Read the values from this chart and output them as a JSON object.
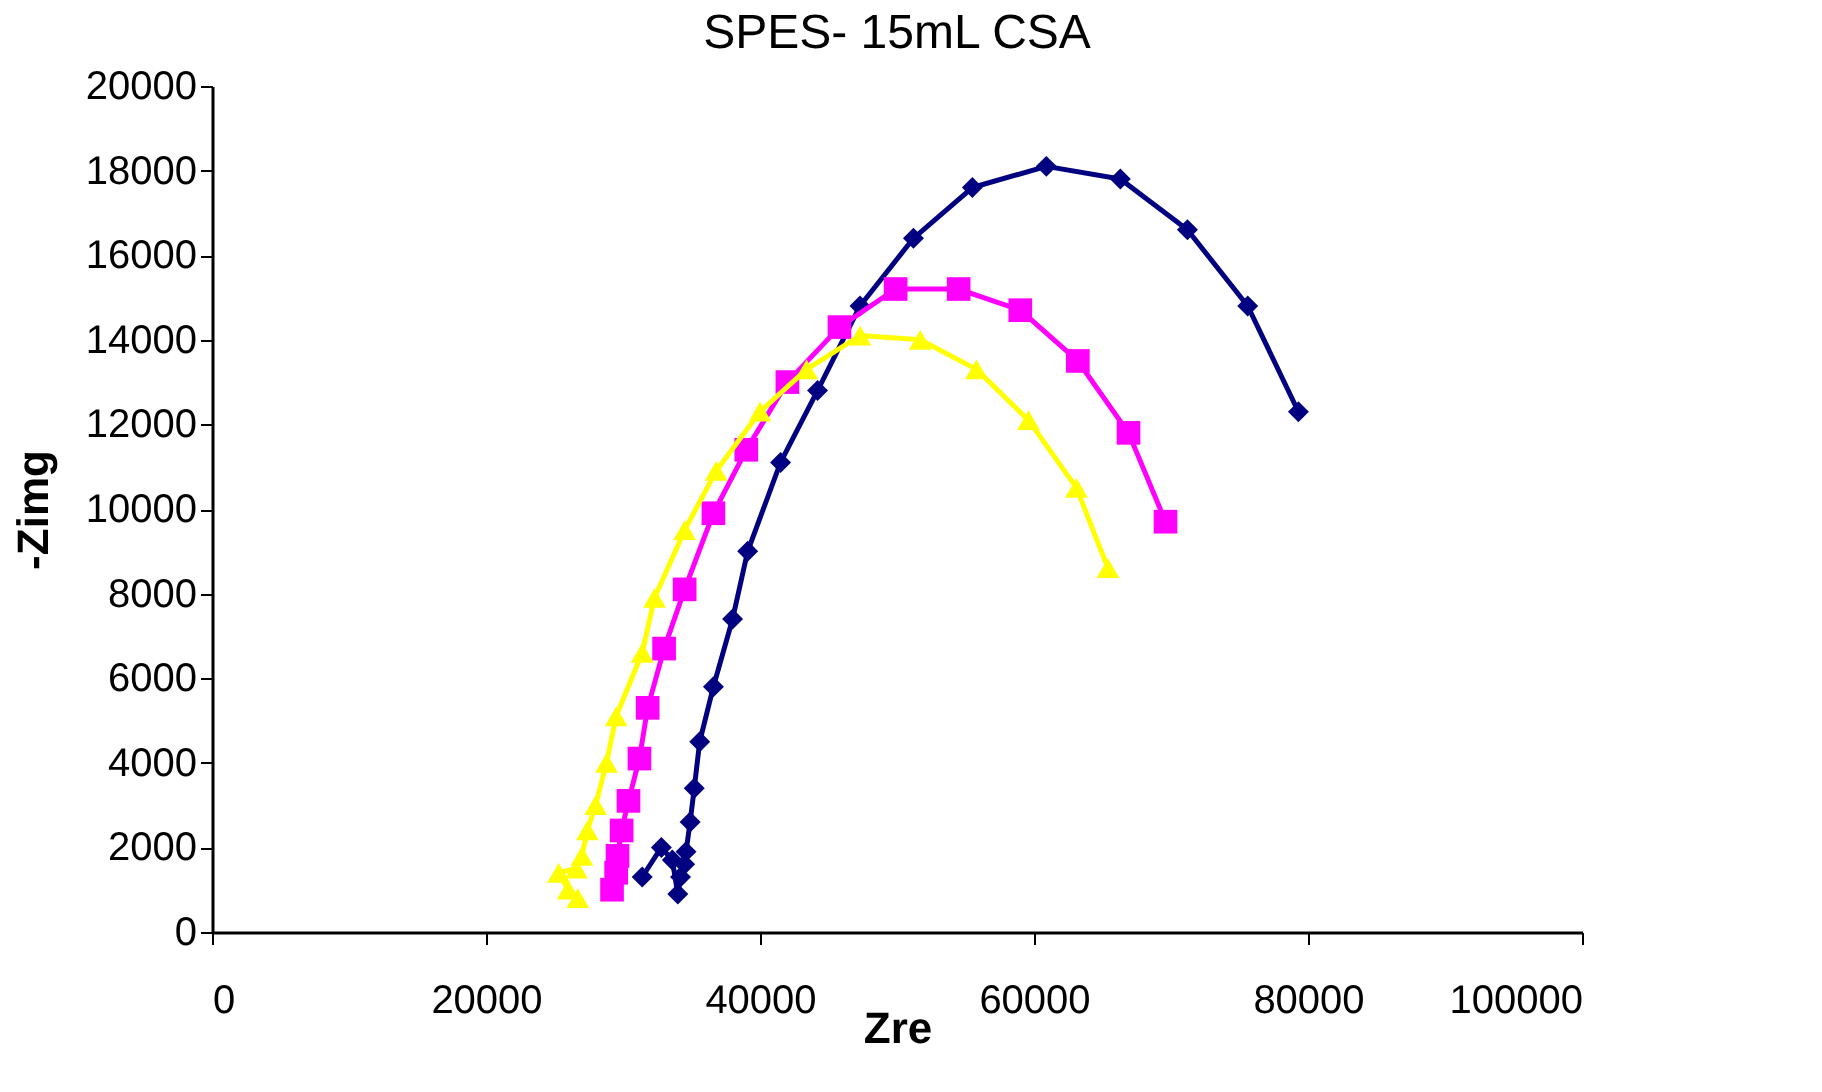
{
  "chart_data": {
    "type": "line",
    "title": "SPES- 15mL CSA",
    "xlabel": "Zre",
    "ylabel": "-Zimg",
    "xlim": [
      0,
      100000
    ],
    "xticks": [
      0,
      20000,
      40000,
      60000,
      80000,
      100000
    ],
    "ylim": [
      0,
      20000
    ],
    "yticks": [
      0,
      2000,
      4000,
      6000,
      8000,
      10000,
      12000,
      14000,
      16000,
      18000,
      20000
    ],
    "grid": false,
    "line_style": "solid",
    "series": [
      {
        "color": "#000080",
        "marker": "diamond",
        "x": [
          31400,
          32800,
          33600,
          34000,
          34200,
          34500,
          34600,
          34900,
          35200,
          35600,
          36600,
          38000,
          39100,
          41500,
          44200,
          47300,
          51200,
          55500,
          60900,
          66300,
          71200,
          75600,
          79300
        ],
        "values": [
          1300,
          2000,
          1700,
          900,
          1300,
          1600,
          1900,
          2600,
          3400,
          4500,
          5800,
          7400,
          9000,
          11100,
          12800,
          14800,
          16400,
          17600,
          18100,
          17800,
          16600,
          14800,
          12300
        ]
      },
      {
        "color": "#ff00ff",
        "marker": "square",
        "x": [
          29200,
          29500,
          29600,
          29900,
          30400,
          31200,
          31800,
          33000,
          34500,
          36600,
          39000,
          42000,
          45800,
          49900,
          54500,
          59000,
          63200,
          66900,
          69600
        ],
        "values": [
          1000,
          1400,
          1800,
          2400,
          3100,
          4100,
          5300,
          6700,
          8100,
          9900,
          11400,
          13000,
          14300,
          15200,
          15200,
          14700,
          13500,
          11800,
          9700
        ]
      },
      {
        "color": "#ffff00",
        "marker": "triangle",
        "x": [
          26700,
          26000,
          25300,
          26600,
          27000,
          27400,
          28000,
          28800,
          29500,
          31400,
          32300,
          34500,
          36800,
          40000,
          43400,
          47300,
          51700,
          55800,
          59600,
          63100,
          65400
        ],
        "values": [
          800,
          1000,
          1400,
          1500,
          1800,
          2400,
          3000,
          4000,
          5100,
          6600,
          7900,
          9500,
          10900,
          12300,
          13300,
          14100,
          14000,
          13300,
          12100,
          10500,
          8600
        ]
      }
    ]
  }
}
